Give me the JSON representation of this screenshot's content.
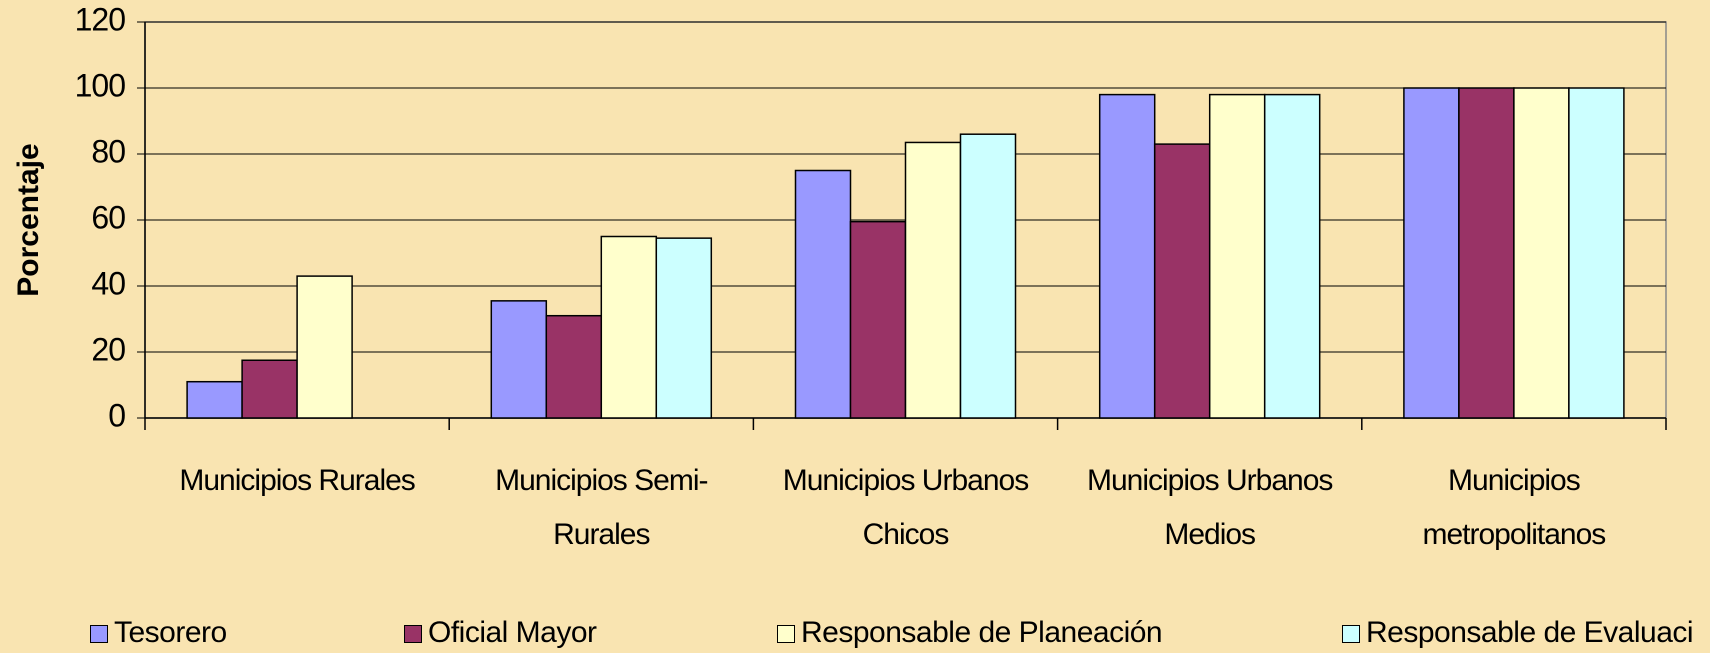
{
  "chart_data": {
    "type": "bar",
    "y_label": "Porcentaje",
    "categories": [
      "Municipios Rurales",
      "Municipios Semi-Rurales",
      "Municipios Urbanos Chicos",
      "Municipios Urbanos Medios",
      "Municipios metropolitanos"
    ],
    "series": [
      {
        "name": "Tesorero",
        "color": "#9999ff",
        "values": [
          11,
          35.5,
          75,
          98,
          100
        ]
      },
      {
        "name": "Oficial Mayor",
        "color": "#993366",
        "values": [
          17.5,
          31,
          59.5,
          83,
          100
        ]
      },
      {
        "name": "Responsable de Planeación",
        "color": "#ffffcc",
        "values": [
          43,
          55,
          83.5,
          98,
          100
        ]
      },
      {
        "name": "Responsable de Evaluaci",
        "color": "#ccffff",
        "values": [
          0,
          54.5,
          86,
          98,
          100
        ]
      }
    ],
    "ylim": [
      0,
      120
    ],
    "yticks": [
      0,
      20,
      40,
      60,
      80,
      100,
      120
    ],
    "grid": true,
    "legend": "bottom"
  }
}
